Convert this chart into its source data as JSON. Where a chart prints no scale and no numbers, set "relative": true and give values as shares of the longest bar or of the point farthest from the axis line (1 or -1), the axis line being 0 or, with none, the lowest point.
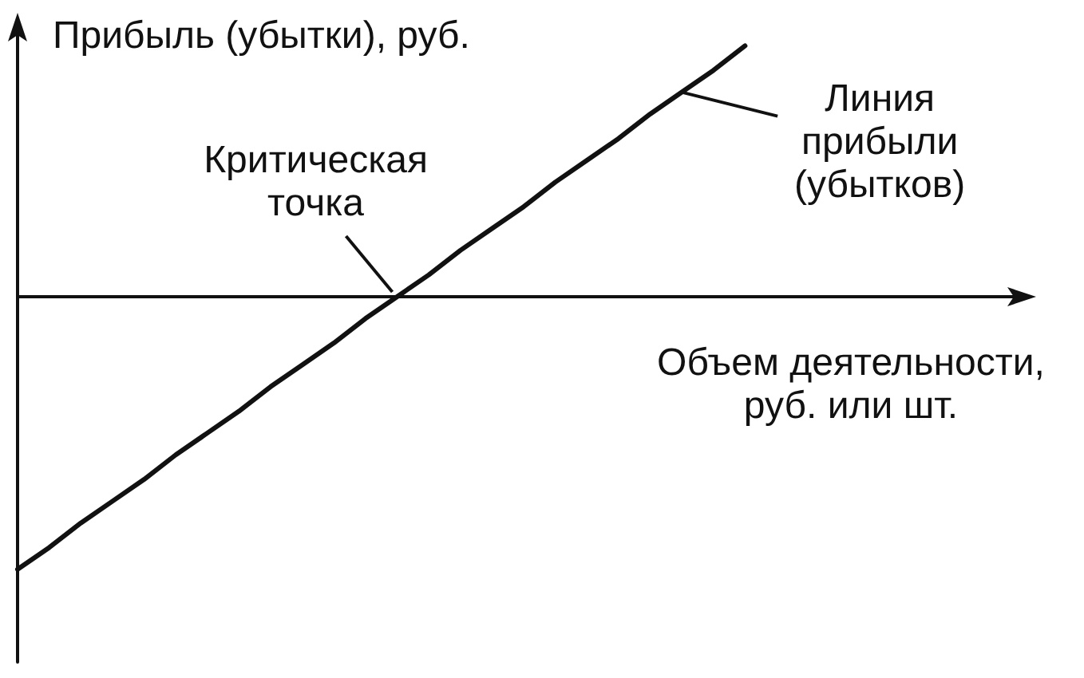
{
  "chart_data": {
    "type": "line",
    "relative": true,
    "ylabel": "Прибыль (убытки), руб.",
    "xlabel": "Объем деятельности,\nруб. или шт.",
    "categories": [
      null,
      null,
      null,
      null,
      null,
      null,
      null,
      null,
      null,
      null,
      null,
      null,
      null,
      null,
      null,
      null,
      null,
      null,
      null,
      null,
      null,
      null,
      null,
      null,
      null,
      null,
      null,
      null,
      null,
      null,
      null,
      null,
      null
    ],
    "series": [
      {
        "name": "Линия\nприбыли\n(убытков)",
        "color": "#111111",
        "values": [
          -1,
          -0.92,
          -0.83,
          -0.75,
          -0.67,
          -0.58,
          -0.5,
          -0.42,
          -0.33,
          -0.25,
          -0.17,
          -0.08,
          0,
          0.08,
          0.17,
          0.25,
          0.33,
          0.42,
          0.5,
          0.58,
          0.67,
          0.75,
          0.83,
          0.92,
          null,
          null,
          null,
          null,
          null,
          null,
          null,
          null,
          null
        ]
      }
    ],
    "annotations": [
      "Критическая\nточка"
    ]
  }
}
